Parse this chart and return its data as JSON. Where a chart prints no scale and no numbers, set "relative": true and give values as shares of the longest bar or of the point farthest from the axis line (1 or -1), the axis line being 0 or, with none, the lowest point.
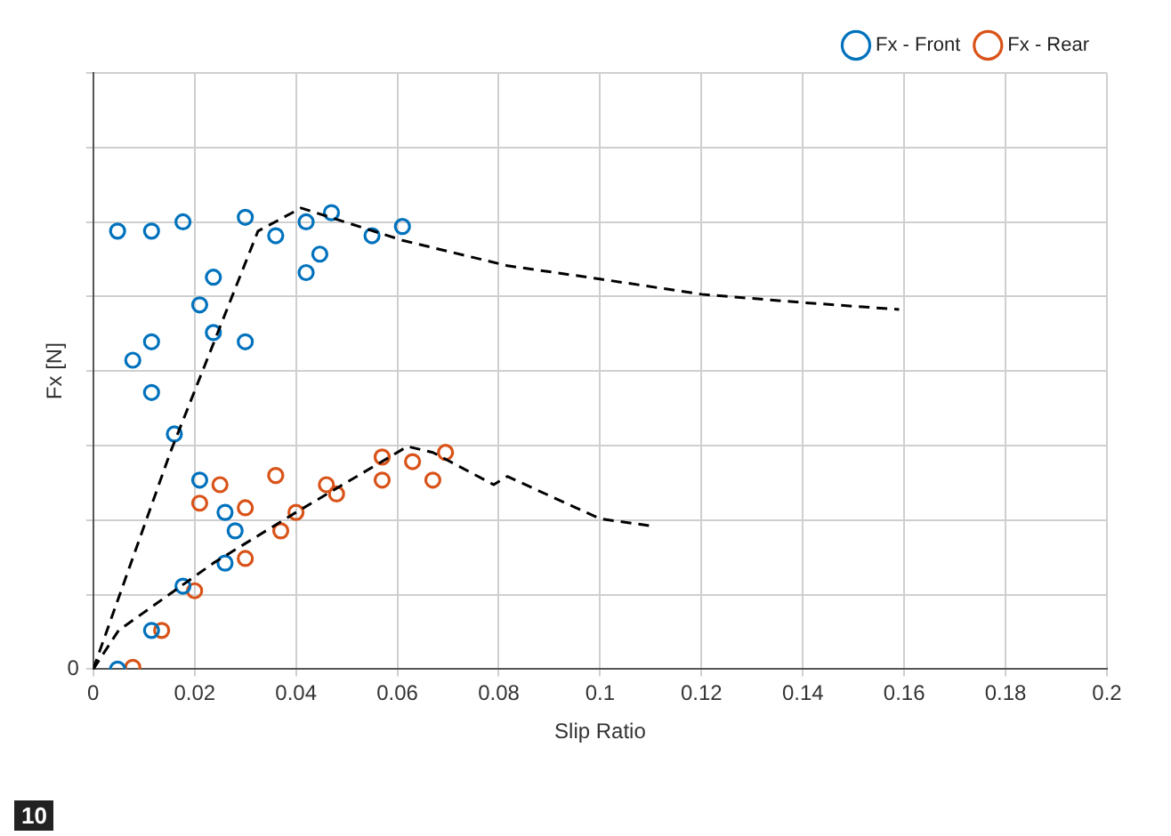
{
  "chart_data": {
    "type": "scatter",
    "xlabel": "Slip Ratio",
    "ylabel": "Fx [N]",
    "relative": true,
    "xlim": [
      0,
      0.2
    ],
    "xticks": [
      0,
      0.02,
      0.04,
      0.06,
      0.08,
      0.1,
      0.12,
      0.14,
      0.16,
      0.18,
      0.2
    ],
    "grid": true,
    "legend": "top right",
    "marker": "circle",
    "annotations": [
      "10",
      {
        "text": "0",
        "x": 0,
        "y": 0
      }
    ],
    "series": [
      {
        "name": "Fx - Front",
        "color": "#0072bd",
        "x": [
          0.0048,
          0.0115,
          0.0177,
          0.026,
          0.028,
          0.026,
          0.021,
          0.016,
          0.0115,
          0.0078,
          0.0115,
          0.03,
          0.0237,
          0.021,
          0.0237,
          0.042,
          0.0447,
          0.036,
          0.042,
          0.047,
          0.061,
          0.055,
          0.0115,
          0.0048,
          0.0177,
          0.03
        ],
        "values": [
          0,
          0.084,
          0.18,
          0.23,
          0.3,
          0.34,
          0.41,
          0.51,
          0.6,
          0.67,
          0.71,
          0.71,
          0.73,
          0.79,
          0.85,
          0.86,
          0.9,
          0.94,
          0.97,
          0.99,
          0.96,
          0.94,
          0.95,
          0.95,
          0.97,
          0.98
        ]
      },
      {
        "name": "Fx - Rear",
        "color": "#d95319",
        "x": [
          0.0078,
          0.0135,
          0.02,
          0.03,
          0.037,
          0.04,
          0.021,
          0.025,
          0.036,
          0.048,
          0.057,
          0.067,
          0.057,
          0.0695,
          0.063,
          0.046,
          0.03
        ],
        "values": [
          0.004,
          0.084,
          0.17,
          0.24,
          0.3,
          0.34,
          0.36,
          0.4,
          0.42,
          0.38,
          0.41,
          0.41,
          0.46,
          0.47,
          0.45,
          0.4,
          0.35
        ]
      },
      {
        "type": "line",
        "color": "#000000",
        "line_style": "dashed",
        "marker": "none",
        "x": [
          0,
          0.0152,
          0.0325,
          0.041,
          0.061,
          0.0817,
          0.1,
          0.12,
          0.14,
          0.159
        ],
        "values": [
          0,
          0.47,
          0.95,
          1.0,
          0.93,
          0.875,
          0.846,
          0.813,
          0.795,
          0.78
        ]
      },
      {
        "type": "line",
        "color": "#000000",
        "line_style": "dashed",
        "marker": "none",
        "x": [
          0,
          0.005,
          0.0237,
          0.04,
          0.062,
          0.067,
          0.079,
          0.0817,
          0.1,
          0.1105
        ],
        "values": [
          0,
          0.084,
          0.23,
          0.34,
          0.483,
          0.47,
          0.4,
          0.418,
          0.326,
          0.31
        ]
      }
    ]
  }
}
